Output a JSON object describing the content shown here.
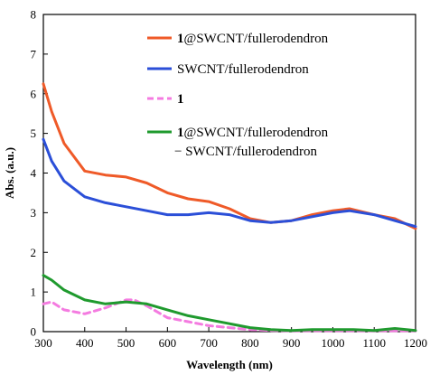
{
  "chart_data": {
    "type": "line",
    "xlabel": "Wavelength (nm)",
    "ylabel": "Abs. (a.u.)",
    "xlim": [
      300,
      1200
    ],
    "ylim": [
      0,
      8
    ],
    "xticks": [
      "300",
      "400",
      "500",
      "600",
      "700",
      "800",
      "900",
      "1000",
      "1100",
      "1200"
    ],
    "yticks": [
      "0",
      "1",
      "2",
      "3",
      "4",
      "5",
      "6",
      "7",
      "8"
    ],
    "grid": false,
    "legend_position": "top-right",
    "series": [
      {
        "name": "1@SWCNT/fullerodendron",
        "name_parts": [
          {
            "text": "1",
            "bold": true
          },
          {
            "text": "@SWCNT/fullerodendron",
            "bold": false
          }
        ],
        "color": "#ef5a28",
        "dash": "solid",
        "x": [
          300,
          320,
          350,
          400,
          450,
          500,
          550,
          600,
          650,
          700,
          750,
          800,
          850,
          900,
          950,
          1000,
          1040,
          1100,
          1150,
          1200
        ],
        "y": [
          6.25,
          5.55,
          4.75,
          4.05,
          3.95,
          3.9,
          3.75,
          3.5,
          3.35,
          3.28,
          3.1,
          2.85,
          2.75,
          2.8,
          2.95,
          3.05,
          3.1,
          2.95,
          2.85,
          2.6
        ]
      },
      {
        "name": "SWCNT/fullerodendron",
        "name_parts": [
          {
            "text": "SWCNT/fullerodendron",
            "bold": false
          }
        ],
        "color": "#2b4fd8",
        "dash": "solid",
        "x": [
          300,
          320,
          350,
          400,
          450,
          500,
          550,
          600,
          650,
          700,
          750,
          800,
          850,
          900,
          950,
          1000,
          1040,
          1100,
          1150,
          1200
        ],
        "y": [
          4.85,
          4.3,
          3.8,
          3.4,
          3.25,
          3.15,
          3.05,
          2.95,
          2.95,
          3.0,
          2.95,
          2.8,
          2.75,
          2.8,
          2.9,
          3.0,
          3.05,
          2.95,
          2.8,
          2.65
        ]
      },
      {
        "name": "1",
        "name_parts": [
          {
            "text": "1",
            "bold": true
          }
        ],
        "color": "#f47be0",
        "dash": "dashed",
        "x": [
          300,
          320,
          350,
          400,
          450,
          500,
          520,
          550,
          600,
          650,
          700,
          750,
          800,
          850,
          900,
          950,
          1000,
          1050,
          1100,
          1150,
          1200
        ],
        "y": [
          0.7,
          0.75,
          0.55,
          0.45,
          0.6,
          0.8,
          0.8,
          0.65,
          0.35,
          0.25,
          0.15,
          0.1,
          0.05,
          0.03,
          0.02,
          0.02,
          0.02,
          0.02,
          0.02,
          0.02,
          0.02
        ]
      },
      {
        "name": "1@SWCNT/fullerodendron − SWCNT/fullerodendron",
        "name_parts": [
          {
            "text": "1",
            "bold": true
          },
          {
            "text": "@SWCNT/fullerodendron",
            "bold": false
          }
        ],
        "name_line2": "− SWCNT/fullerodendron",
        "color": "#1f9a2e",
        "dash": "solid",
        "x": [
          300,
          320,
          350,
          400,
          450,
          500,
          550,
          600,
          650,
          700,
          750,
          800,
          850,
          900,
          950,
          1000,
          1050,
          1100,
          1150,
          1200
        ],
        "y": [
          1.42,
          1.3,
          1.05,
          0.8,
          0.7,
          0.75,
          0.7,
          0.55,
          0.4,
          0.3,
          0.2,
          0.1,
          0.05,
          0.03,
          0.05,
          0.05,
          0.05,
          0.03,
          0.08,
          0.03
        ]
      }
    ]
  }
}
